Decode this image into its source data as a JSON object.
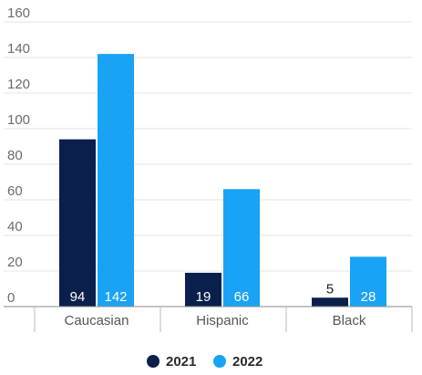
{
  "chart_data": {
    "type": "bar",
    "categories": [
      "Caucasian",
      "Hispanic",
      "Black"
    ],
    "series": [
      {
        "name": "2021",
        "values": [
          94,
          19,
          5
        ],
        "color": "#0b1f4d"
      },
      {
        "name": "2022",
        "values": [
          142,
          66,
          28
        ],
        "color": "#1aa3f5"
      }
    ],
    "data_labels": [
      [
        "94",
        "19",
        "5"
      ],
      [
        "142",
        "66",
        "28"
      ]
    ],
    "yticks": [
      "0",
      "20",
      "40",
      "60",
      "80",
      "100",
      "120",
      "140",
      "160"
    ],
    "ylim": [
      0,
      160
    ],
    "grid": true,
    "legend_position": "bottom-center",
    "axis_color": "#888888",
    "grid_color": "#e6e6e6"
  }
}
